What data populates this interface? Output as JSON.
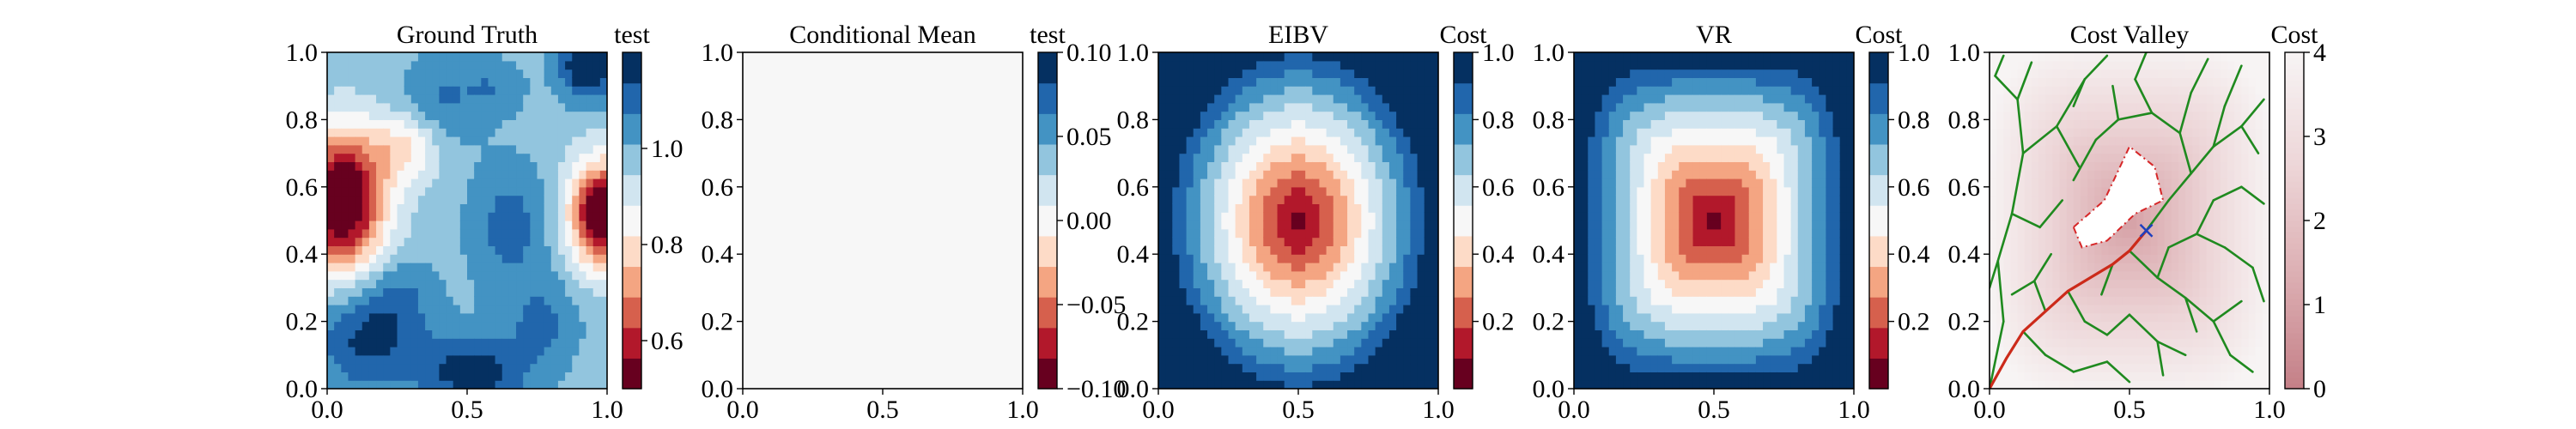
{
  "chart_data": [
    {
      "type": "heatmap",
      "title": "Ground Truth",
      "xlim": [
        0,
        1
      ],
      "ylim": [
        0,
        1
      ],
      "xticks": [
        "0.0",
        "0.5",
        "1.0"
      ],
      "yticks": [
        "0.0",
        "0.2",
        "0.4",
        "0.6",
        "0.8",
        "1.0"
      ],
      "colorbar": {
        "label": "test",
        "range": [
          0.5,
          1.2
        ],
        "ticks": [
          "0.6",
          "0.8",
          "1.0"
        ],
        "tick_values": [
          0.6,
          0.8,
          1.0
        ],
        "levels": 11,
        "colormap": "RdBu"
      },
      "field": {
        "base": 0.98,
        "components": [
          {
            "cx": 0.05,
            "cy": 0.56,
            "sx": 0.11,
            "sy": 0.14,
            "amp": -0.56
          },
          {
            "cx": 0.98,
            "cy": 0.52,
            "sx": 0.08,
            "sy": 0.11,
            "amp": -0.52
          },
          {
            "cx": 0.28,
            "cy": 0.72,
            "sx": 0.09,
            "sy": 0.07,
            "amp": -0.18
          },
          {
            "cx": 0.14,
            "cy": 0.14,
            "sx": 0.13,
            "sy": 0.1,
            "amp": 0.17
          },
          {
            "cx": 0.52,
            "cy": 0.05,
            "sx": 0.14,
            "sy": 0.08,
            "amp": 0.2
          },
          {
            "cx": 0.93,
            "cy": 0.96,
            "sx": 0.07,
            "sy": 0.07,
            "amp": 0.25
          },
          {
            "cx": 0.4,
            "cy": 0.85,
            "sx": 0.1,
            "sy": 0.1,
            "amp": 0.1
          },
          {
            "cx": 0.65,
            "cy": 0.48,
            "sx": 0.1,
            "sy": 0.14,
            "amp": 0.12
          },
          {
            "cx": 0.25,
            "cy": 0.28,
            "sx": 0.1,
            "sy": 0.08,
            "amp": 0.09
          },
          {
            "cx": 0.78,
            "cy": 0.2,
            "sx": 0.09,
            "sy": 0.09,
            "amp": 0.1
          },
          {
            "cx": 0.6,
            "cy": 0.9,
            "sx": 0.08,
            "sy": 0.06,
            "amp": 0.08
          }
        ]
      }
    },
    {
      "type": "heatmap",
      "title": "Conditional Mean",
      "xlim": [
        0,
        1
      ],
      "ylim": [
        0,
        1
      ],
      "xticks": [
        "0.0",
        "0.5",
        "1.0"
      ],
      "yticks": [
        "0.0",
        "0.2",
        "0.4",
        "0.6",
        "0.8",
        "1.0"
      ],
      "colorbar": {
        "label": "test",
        "range": [
          -0.1,
          0.1
        ],
        "ticks": [
          "−0.10",
          "−0.05",
          "0.00",
          "0.05",
          "0.10"
        ],
        "tick_values": [
          -0.1,
          -0.05,
          0.0,
          0.05,
          0.1
        ],
        "levels": 11,
        "colormap": "RdBu"
      },
      "field": {
        "base": 0.0,
        "components": []
      }
    },
    {
      "type": "heatmap",
      "title": "EIBV",
      "xlim": [
        0,
        1
      ],
      "ylim": [
        0,
        1
      ],
      "xticks": [
        "0.0",
        "0.5",
        "1.0"
      ],
      "yticks": [
        "0.0",
        "0.2",
        "0.4",
        "0.6",
        "0.8",
        "1.0"
      ],
      "colorbar": {
        "label": "Cost",
        "range": [
          0,
          1
        ],
        "ticks": [
          "0.2",
          "0.4",
          "0.6",
          "0.8",
          "1.0"
        ],
        "tick_values": [
          0.2,
          0.4,
          0.6,
          0.8,
          1.0
        ],
        "levels": 11,
        "colormap": "RdBu"
      },
      "field": {
        "kind": "ellipse",
        "cx": 0.5,
        "cy": 0.5,
        "rx": 0.6,
        "ry": 0.66,
        "power": 2,
        "min": 0.02
      }
    },
    {
      "type": "heatmap",
      "title": "VR",
      "xlim": [
        0,
        1
      ],
      "ylim": [
        0,
        1
      ],
      "xticks": [
        "0.0",
        "0.5",
        "1.0"
      ],
      "yticks": [
        "0.0",
        "0.2",
        "0.4",
        "0.6",
        "0.8",
        "1.0"
      ],
      "colorbar": {
        "label": "Cost",
        "range": [
          0,
          1
        ],
        "ticks": [
          "0.2",
          "0.4",
          "0.6",
          "0.8",
          "1.0"
        ],
        "tick_values": [
          0.2,
          0.4,
          0.6,
          0.8,
          1.0
        ],
        "levels": 11,
        "colormap": "RdBu"
      },
      "field": {
        "kind": "superellipse",
        "cx": 0.5,
        "cy": 0.5,
        "rx": 0.6,
        "ry": 0.62,
        "power": 4,
        "min": 0.02
      }
    },
    {
      "type": "scatter",
      "title": "Cost Valley",
      "xlim": [
        0,
        1
      ],
      "ylim": [
        0,
        1
      ],
      "xticks": [
        "0.0",
        "0.5",
        "1.0"
      ],
      "yticks": [
        "0.0",
        "0.2",
        "0.4",
        "0.6",
        "0.8",
        "1.0"
      ],
      "colorbar": {
        "label": "Cost",
        "range": [
          0,
          4
        ],
        "ticks": [
          "0",
          "1",
          "2",
          "3",
          "4"
        ],
        "tick_values": [
          0,
          1,
          2,
          3,
          4
        ],
        "colormap": "Reds"
      },
      "background_field": {
        "kind": "superellipse",
        "cx": 0.5,
        "cy": 0.5,
        "rx": 0.62,
        "ry": 0.64,
        "power": 4,
        "max": 1.4
      },
      "obstacle_polygon": [
        [
          0.3,
          0.48
        ],
        [
          0.41,
          0.56
        ],
        [
          0.5,
          0.72
        ],
        [
          0.59,
          0.66
        ],
        [
          0.62,
          0.56
        ],
        [
          0.52,
          0.52
        ],
        [
          0.42,
          0.44
        ],
        [
          0.33,
          0.42
        ]
      ],
      "target_marker": [
        0.56,
        0.47
      ],
      "tree_edges": [
        [
          [
            0,
            0
          ],
          [
            0.06,
            0.09
          ]
        ],
        [
          [
            0.06,
            0.09
          ],
          [
            0.12,
            0.17
          ]
        ],
        [
          [
            0.12,
            0.17
          ],
          [
            0.2,
            0.23
          ]
        ],
        [
          [
            0.2,
            0.23
          ],
          [
            0.28,
            0.29
          ]
        ],
        [
          [
            0.28,
            0.29
          ],
          [
            0.36,
            0.33
          ]
        ],
        [
          [
            0.36,
            0.33
          ],
          [
            0.44,
            0.37
          ]
        ],
        [
          [
            0.44,
            0.37
          ],
          [
            0.5,
            0.41
          ]
        ],
        [
          [
            0.5,
            0.41
          ],
          [
            0.56,
            0.47
          ]
        ],
        [
          [
            0,
            0
          ],
          [
            0.05,
            0.2
          ]
        ],
        [
          [
            0.05,
            0.2
          ],
          [
            0.03,
            0.38
          ]
        ],
        [
          [
            0.03,
            0.38
          ],
          [
            0.08,
            0.52
          ]
        ],
        [
          [
            0.08,
            0.52
          ],
          [
            0.12,
            0.7
          ]
        ],
        [
          [
            0.12,
            0.7
          ],
          [
            0.1,
            0.86
          ]
        ],
        [
          [
            0.1,
            0.86
          ],
          [
            0.15,
            0.97
          ]
        ],
        [
          [
            0.12,
            0.7
          ],
          [
            0.24,
            0.78
          ]
        ],
        [
          [
            0.24,
            0.78
          ],
          [
            0.34,
            0.92
          ]
        ],
        [
          [
            0.24,
            0.78
          ],
          [
            0.32,
            0.66
          ]
        ],
        [
          [
            0.08,
            0.52
          ],
          [
            0.18,
            0.48
          ]
        ],
        [
          [
            0.18,
            0.48
          ],
          [
            0.26,
            0.56
          ]
        ],
        [
          [
            0.03,
            0.38
          ],
          [
            0.0,
            0.3
          ]
        ],
        [
          [
            0.1,
            0.86
          ],
          [
            0.02,
            0.93
          ]
        ],
        [
          [
            0.34,
            0.92
          ],
          [
            0.42,
            0.99
          ]
        ],
        [
          [
            0.34,
            0.92
          ],
          [
            0.3,
            0.84
          ]
        ],
        [
          [
            0.12,
            0.17
          ],
          [
            0.2,
            0.1
          ]
        ],
        [
          [
            0.2,
            0.1
          ],
          [
            0.3,
            0.05
          ]
        ],
        [
          [
            0.3,
            0.05
          ],
          [
            0.42,
            0.08
          ]
        ],
        [
          [
            0.42,
            0.08
          ],
          [
            0.5,
            0.02
          ]
        ],
        [
          [
            0.2,
            0.23
          ],
          [
            0.16,
            0.32
          ]
        ],
        [
          [
            0.16,
            0.32
          ],
          [
            0.22,
            0.4
          ]
        ],
        [
          [
            0.28,
            0.29
          ],
          [
            0.34,
            0.2
          ]
        ],
        [
          [
            0.34,
            0.2
          ],
          [
            0.42,
            0.16
          ]
        ],
        [
          [
            0.42,
            0.16
          ],
          [
            0.5,
            0.22
          ]
        ],
        [
          [
            0.44,
            0.37
          ],
          [
            0.4,
            0.28
          ]
        ],
        [
          [
            0.5,
            0.22
          ],
          [
            0.6,
            0.14
          ]
        ],
        [
          [
            0.6,
            0.14
          ],
          [
            0.7,
            0.1
          ]
        ],
        [
          [
            0.6,
            0.14
          ],
          [
            0.62,
            0.04
          ]
        ],
        [
          [
            0.5,
            0.41
          ],
          [
            0.6,
            0.33
          ]
        ],
        [
          [
            0.6,
            0.33
          ],
          [
            0.7,
            0.27
          ]
        ],
        [
          [
            0.7,
            0.27
          ],
          [
            0.8,
            0.2
          ]
        ],
        [
          [
            0.8,
            0.2
          ],
          [
            0.86,
            0.1
          ]
        ],
        [
          [
            0.8,
            0.2
          ],
          [
            0.9,
            0.26
          ]
        ],
        [
          [
            0.7,
            0.27
          ],
          [
            0.74,
            0.17
          ]
        ],
        [
          [
            0.6,
            0.33
          ],
          [
            0.64,
            0.42
          ]
        ],
        [
          [
            0.64,
            0.42
          ],
          [
            0.74,
            0.46
          ]
        ],
        [
          [
            0.74,
            0.46
          ],
          [
            0.84,
            0.42
          ]
        ],
        [
          [
            0.84,
            0.42
          ],
          [
            0.94,
            0.36
          ]
        ],
        [
          [
            0.74,
            0.46
          ],
          [
            0.8,
            0.56
          ]
        ],
        [
          [
            0.8,
            0.56
          ],
          [
            0.9,
            0.6
          ]
        ],
        [
          [
            0.9,
            0.6
          ],
          [
            0.98,
            0.55
          ]
        ],
        [
          [
            0.56,
            0.47
          ],
          [
            0.64,
            0.56
          ]
        ],
        [
          [
            0.64,
            0.56
          ],
          [
            0.72,
            0.64
          ]
        ],
        [
          [
            0.72,
            0.64
          ],
          [
            0.8,
            0.72
          ]
        ],
        [
          [
            0.8,
            0.72
          ],
          [
            0.9,
            0.78
          ]
        ],
        [
          [
            0.9,
            0.78
          ],
          [
            0.98,
            0.86
          ]
        ],
        [
          [
            0.8,
            0.72
          ],
          [
            0.84,
            0.84
          ]
        ],
        [
          [
            0.84,
            0.84
          ],
          [
            0.9,
            0.96
          ]
        ],
        [
          [
            0.72,
            0.64
          ],
          [
            0.68,
            0.76
          ]
        ],
        [
          [
            0.68,
            0.76
          ],
          [
            0.72,
            0.88
          ]
        ],
        [
          [
            0.72,
            0.88
          ],
          [
            0.78,
            0.98
          ]
        ],
        [
          [
            0.68,
            0.76
          ],
          [
            0.58,
            0.82
          ]
        ],
        [
          [
            0.58,
            0.82
          ],
          [
            0.52,
            0.92
          ]
        ],
        [
          [
            0.52,
            0.92
          ],
          [
            0.56,
            1.0
          ]
        ],
        [
          [
            0.58,
            0.82
          ],
          [
            0.46,
            0.8
          ]
        ],
        [
          [
            0.46,
            0.8
          ],
          [
            0.38,
            0.74
          ]
        ],
        [
          [
            0.46,
            0.8
          ],
          [
            0.44,
            0.9
          ]
        ],
        [
          [
            0.9,
            0.78
          ],
          [
            0.96,
            0.7
          ]
        ],
        [
          [
            0.38,
            0.74
          ],
          [
            0.3,
            0.62
          ]
        ],
        [
          [
            0.94,
            0.36
          ],
          [
            0.98,
            0.26
          ]
        ],
        [
          [
            0.86,
            0.1
          ],
          [
            0.94,
            0.05
          ]
        ],
        [
          [
            0.16,
            0.32
          ],
          [
            0.08,
            0.28
          ]
        ],
        [
          [
            0.02,
            0.93
          ],
          [
            0.05,
            0.99
          ]
        ]
      ],
      "path": [
        [
          0,
          0
        ],
        [
          0.06,
          0.09
        ],
        [
          0.12,
          0.17
        ],
        [
          0.2,
          0.23
        ],
        [
          0.28,
          0.29
        ],
        [
          0.36,
          0.33
        ],
        [
          0.44,
          0.37
        ],
        [
          0.5,
          0.41
        ],
        [
          0.56,
          0.47
        ]
      ],
      "colors": {
        "tree": "#1f8a1f",
        "path": "#cc2a1a",
        "obstacle": "#d62728",
        "marker": "#1f3fbf"
      }
    }
  ]
}
